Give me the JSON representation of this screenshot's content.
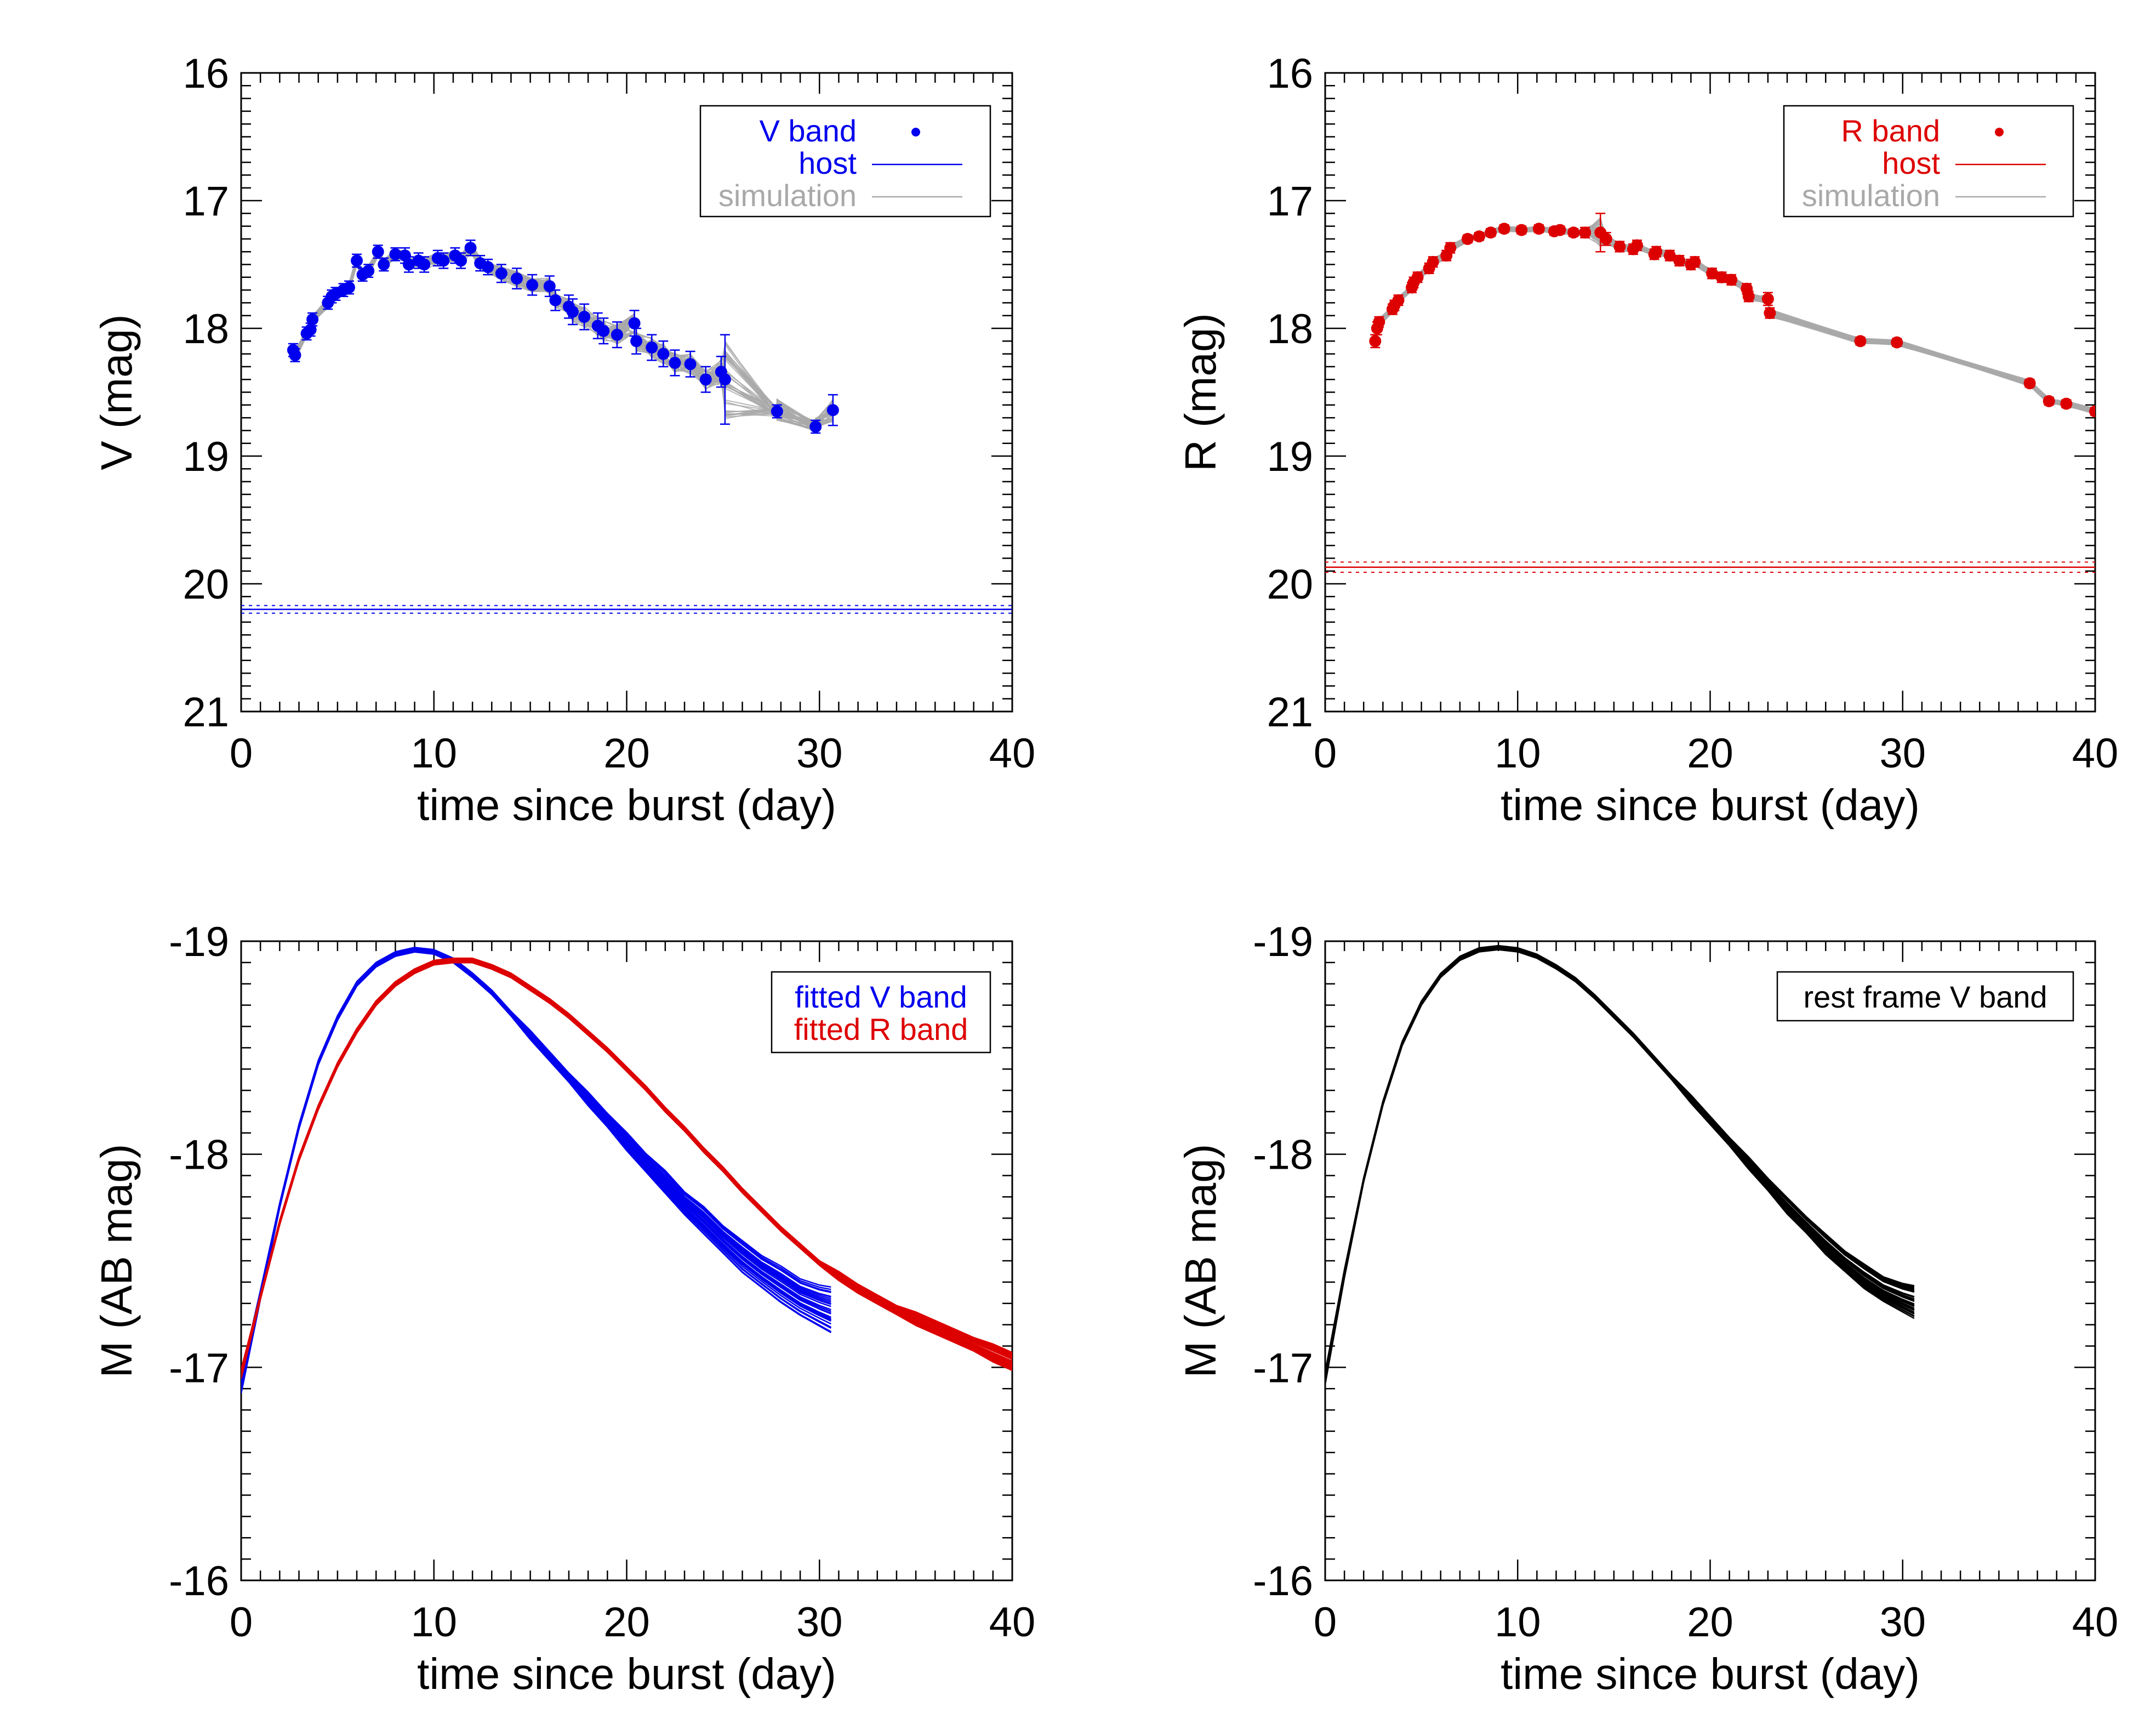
{
  "chart_data": [
    {
      "type": "scatter",
      "ylabel": "V (mag)",
      "xlabel": "time since burst (day)",
      "xlim": [
        0,
        40
      ],
      "ylim": [
        21,
        16
      ],
      "y_reversed": true,
      "xticks": [
        0,
        10,
        20,
        30,
        40
      ],
      "yticks": [
        16,
        17,
        18,
        19,
        20,
        21
      ],
      "color": "#0000ee",
      "legend_position": "top-right",
      "legend": [
        {
          "label": "V band",
          "kind": "marker",
          "color": "#0000ee"
        },
        {
          "label": "host",
          "kind": "line",
          "color": "#0000ee"
        },
        {
          "label": "simulation",
          "kind": "line",
          "color": "#a9a9a9"
        }
      ],
      "host_mag": 20.2,
      "host_err": 0.03,
      "series": [
        {
          "name": "V band",
          "x": [
            2.7,
            2.8,
            3.4,
            3.6,
            3.7,
            4.5,
            4.7,
            4.9,
            5.3,
            5.6,
            6.0,
            6.3,
            6.6,
            7.1,
            7.4,
            8.0,
            8.5,
            8.7,
            9.2,
            9.5,
            10.2,
            10.5,
            11.1,
            11.4,
            11.9,
            12.4,
            12.8,
            13.5,
            14.3,
            15.1,
            16.0,
            16.3,
            17.0,
            17.2,
            17.8,
            18.5,
            18.8,
            19.5,
            20.4,
            20.5,
            21.3,
            21.9,
            22.5,
            23.3,
            24.1,
            24.9,
            25.1,
            27.8,
            29.8,
            30.7
          ],
          "y": [
            18.17,
            18.21,
            18.04,
            18.01,
            17.93,
            17.8,
            17.75,
            17.73,
            17.7,
            17.68,
            17.47,
            17.58,
            17.55,
            17.4,
            17.5,
            17.42,
            17.43,
            17.5,
            17.47,
            17.5,
            17.45,
            17.47,
            17.43,
            17.47,
            17.37,
            17.49,
            17.52,
            17.57,
            17.61,
            17.66,
            17.67,
            17.78,
            17.83,
            17.87,
            17.91,
            17.98,
            18.02,
            18.05,
            17.96,
            18.1,
            18.15,
            18.2,
            18.27,
            18.28,
            18.4,
            18.34,
            18.4,
            18.65,
            18.77,
            18.64
          ],
          "err": [
            0.05,
            0.05,
            0.05,
            0.05,
            0.05,
            0.05,
            0.05,
            0.05,
            0.05,
            0.05,
            0.05,
            0.05,
            0.05,
            0.05,
            0.05,
            0.05,
            0.06,
            0.06,
            0.06,
            0.06,
            0.06,
            0.06,
            0.06,
            0.06,
            0.06,
            0.06,
            0.06,
            0.07,
            0.08,
            0.08,
            0.08,
            0.08,
            0.09,
            0.1,
            0.1,
            0.1,
            0.1,
            0.1,
            0.1,
            0.1,
            0.1,
            0.1,
            0.1,
            0.1,
            0.1,
            0.12,
            0.35,
            0.05,
            0.05,
            0.12
          ]
        },
        {
          "name": "simulation",
          "x": [
            25.1,
            27.8,
            29.8,
            30.7
          ],
          "y_range": [
            [
              18.05,
              18.75
            ],
            [
              18.55,
              18.72
            ],
            [
              18.7,
              18.8
            ],
            [
              18.6,
              18.68
            ]
          ]
        }
      ]
    },
    {
      "type": "scatter",
      "ylabel": "R (mag)",
      "xlabel": "time since burst (day)",
      "xlim": [
        0,
        40
      ],
      "ylim": [
        21,
        16
      ],
      "y_reversed": true,
      "xticks": [
        0,
        10,
        20,
        30,
        40
      ],
      "yticks": [
        16,
        17,
        18,
        19,
        20,
        21
      ],
      "color": "#dd0000",
      "legend_position": "top-right",
      "legend": [
        {
          "label": "R band",
          "kind": "marker",
          "color": "#dd0000"
        },
        {
          "label": "host",
          "kind": "line",
          "color": "#dd0000"
        },
        {
          "label": "simulation",
          "kind": "line",
          "color": "#a9a9a9"
        }
      ],
      "host_mag": 19.87,
      "host_err": 0.04,
      "series": [
        {
          "name": "R band",
          "x": [
            2.6,
            2.7,
            2.8,
            3.5,
            3.6,
            3.8,
            4.5,
            4.6,
            4.8,
            5.4,
            5.6,
            6.3,
            6.5,
            7.4,
            8.0,
            8.6,
            9.3,
            10.2,
            11.1,
            11.9,
            12.2,
            12.9,
            13.5,
            14.3,
            14.6,
            15.3,
            16.0,
            16.2,
            17.1,
            17.2,
            17.9,
            18.4,
            19.0,
            19.2,
            20.1,
            20.6,
            21.1,
            21.9,
            22.0,
            23.0,
            23.1,
            27.8,
            29.7,
            36.6,
            37.6,
            38.5,
            40.0
          ],
          "y": [
            18.1,
            18.0,
            17.95,
            17.85,
            17.82,
            17.78,
            17.68,
            17.64,
            17.6,
            17.53,
            17.48,
            17.43,
            17.37,
            17.3,
            17.28,
            17.25,
            17.22,
            17.23,
            17.22,
            17.24,
            17.23,
            17.25,
            17.25,
            17.25,
            17.3,
            17.36,
            17.38,
            17.35,
            17.42,
            17.4,
            17.43,
            17.47,
            17.5,
            17.48,
            17.57,
            17.6,
            17.62,
            17.69,
            17.75,
            17.77,
            17.88,
            18.1,
            18.11,
            18.43,
            18.57,
            18.59,
            18.65
          ],
          "err": [
            0.05,
            0.05,
            0.04,
            0.04,
            0.04,
            0.04,
            0.04,
            0.04,
            0.04,
            0.04,
            0.04,
            0.04,
            0.04,
            0.03,
            0.03,
            0.03,
            0.03,
            0.03,
            0.03,
            0.03,
            0.03,
            0.03,
            0.04,
            0.15,
            0.05,
            0.04,
            0.04,
            0.04,
            0.04,
            0.04,
            0.04,
            0.04,
            0.04,
            0.04,
            0.04,
            0.04,
            0.04,
            0.04,
            0.04,
            0.05,
            0.04,
            0.03,
            0.03,
            0.03,
            0.03,
            0.03,
            0.03
          ]
        }
      ]
    },
    {
      "type": "line",
      "ylabel": "M (AB mag)",
      "xlabel": "time since burst (day)",
      "xlim": [
        0,
        40
      ],
      "ylim": [
        -16,
        -19
      ],
      "y_reversed": true,
      "xticks": [
        0,
        10,
        20,
        30,
        40
      ],
      "yticks": [
        -19,
        -18,
        -17,
        -16
      ],
      "legend_position": "top-right",
      "legend": [
        {
          "label": "fitted V band",
          "kind": "text",
          "color": "#0000ee"
        },
        {
          "label": "fitted R band",
          "kind": "text",
          "color": "#dd0000"
        }
      ],
      "series": [
        {
          "name": "fitted V band",
          "color": "#0000ee",
          "x": [
            0,
            1,
            2,
            3,
            4,
            5,
            6,
            7,
            8,
            9,
            10,
            11,
            12,
            13,
            14,
            15,
            16,
            17,
            18,
            19,
            20,
            21,
            22,
            23,
            24,
            25,
            26,
            27,
            28,
            29,
            30,
            30.6
          ],
          "y": [
            -16.92,
            -17.34,
            -17.76,
            -18.13,
            -18.43,
            -18.64,
            -18.8,
            -18.89,
            -18.94,
            -18.96,
            -18.95,
            -18.91,
            -18.84,
            -18.76,
            -18.66,
            -18.56,
            -18.46,
            -18.36,
            -18.26,
            -18.16,
            -18.06,
            -17.96,
            -17.87,
            -17.77,
            -17.69,
            -17.6,
            -17.52,
            -17.45,
            -17.39,
            -17.33,
            -17.29,
            -17.27
          ],
          "spread": [
            0.04,
            0.02,
            0.01,
            0.01,
            0.01,
            0.01,
            0.01,
            0.01,
            0.01,
            0.01,
            0.01,
            0.01,
            0.01,
            0.01,
            0.01,
            0.02,
            0.02,
            0.02,
            0.03,
            0.03,
            0.04,
            0.04,
            0.05,
            0.05,
            0.06,
            0.06,
            0.07,
            0.07,
            0.08,
            0.08,
            0.09,
            0.1
          ]
        },
        {
          "name": "fitted R band",
          "color": "#dd0000",
          "x": [
            0,
            1,
            2,
            3,
            4,
            5,
            6,
            7,
            8,
            9,
            10,
            11,
            12,
            13,
            14,
            15,
            16,
            17,
            18,
            19,
            20,
            21,
            22,
            23,
            24,
            25,
            26,
            27,
            28,
            29,
            30,
            31,
            32,
            33,
            34,
            35,
            36,
            37,
            38,
            39,
            40
          ],
          "y": [
            -16.97,
            -17.33,
            -17.68,
            -17.98,
            -18.22,
            -18.42,
            -18.58,
            -18.71,
            -18.8,
            -18.86,
            -18.9,
            -18.91,
            -18.91,
            -18.88,
            -18.84,
            -18.78,
            -18.72,
            -18.65,
            -18.57,
            -18.49,
            -18.4,
            -18.31,
            -18.21,
            -18.12,
            -18.02,
            -17.93,
            -17.83,
            -17.74,
            -17.65,
            -17.57,
            -17.49,
            -17.43,
            -17.37,
            -17.32,
            -17.27,
            -17.23,
            -17.19,
            -17.15,
            -17.11,
            -17.07,
            -17.03
          ],
          "spread": [
            0.02,
            0.01,
            0.01,
            0.01,
            0.01,
            0.01,
            0.01,
            0.01,
            0.01,
            0.01,
            0.01,
            0.01,
            0.01,
            0.01,
            0.01,
            0.01,
            0.01,
            0.01,
            0.01,
            0.01,
            0.01,
            0.01,
            0.01,
            0.01,
            0.01,
            0.01,
            0.01,
            0.01,
            0.01,
            0.01,
            0.01,
            0.02,
            0.02,
            0.02,
            0.02,
            0.03,
            0.03,
            0.03,
            0.03,
            0.04,
            0.04
          ]
        }
      ]
    },
    {
      "type": "line",
      "ylabel": "M (AB mag)",
      "xlabel": "time since burst (day)",
      "xlim": [
        0,
        40
      ],
      "ylim": [
        -16,
        -19
      ],
      "y_reversed": true,
      "xticks": [
        0,
        10,
        20,
        30,
        40
      ],
      "yticks": [
        -19,
        -18,
        -17,
        -16
      ],
      "legend_position": "top-right",
      "legend": [
        {
          "label": "rest frame V band",
          "kind": "text",
          "color": "#000000"
        }
      ],
      "series": [
        {
          "name": "rest frame V band",
          "color": "#000000",
          "x": [
            0,
            1,
            2,
            3,
            4,
            5,
            6,
            7,
            8,
            9,
            10,
            11,
            12,
            13,
            14,
            15,
            16,
            17,
            18,
            19,
            20,
            21,
            22,
            23,
            24,
            25,
            26,
            27,
            28,
            29,
            30,
            30.6
          ],
          "y": [
            -16.95,
            -17.44,
            -17.88,
            -18.24,
            -18.52,
            -18.71,
            -18.84,
            -18.92,
            -18.96,
            -18.97,
            -18.96,
            -18.93,
            -18.88,
            -18.82,
            -18.74,
            -18.65,
            -18.56,
            -18.46,
            -18.36,
            -18.26,
            -18.16,
            -18.06,
            -17.96,
            -17.86,
            -17.76,
            -17.67,
            -17.58,
            -17.5,
            -17.43,
            -17.37,
            -17.33,
            -17.31
          ],
          "spread": [
            0.03,
            0.02,
            0.01,
            0.01,
            0.01,
            0.01,
            0.01,
            0.01,
            0.01,
            0.01,
            0.01,
            0.01,
            0.01,
            0.01,
            0.01,
            0.01,
            0.01,
            0.01,
            0.01,
            0.02,
            0.02,
            0.02,
            0.03,
            0.03,
            0.04,
            0.04,
            0.05,
            0.05,
            0.06,
            0.06,
            0.07,
            0.08
          ]
        }
      ]
    }
  ]
}
